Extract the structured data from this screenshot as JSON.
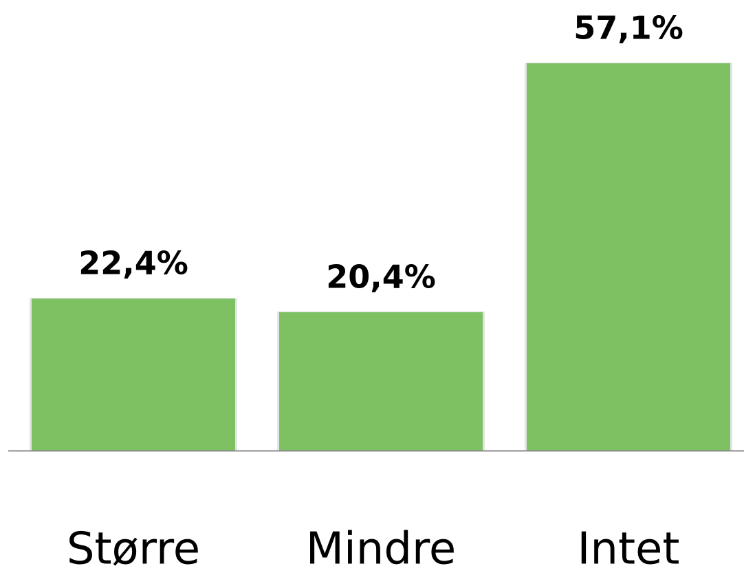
{
  "chart_data": {
    "type": "bar",
    "categories": [
      "Større",
      "Mindre",
      "Intet"
    ],
    "values": [
      22.4,
      20.4,
      57.1
    ],
    "value_labels": [
      "22,4%",
      "20,4%",
      "57,1%"
    ],
    "color": "#7dc163"
  }
}
